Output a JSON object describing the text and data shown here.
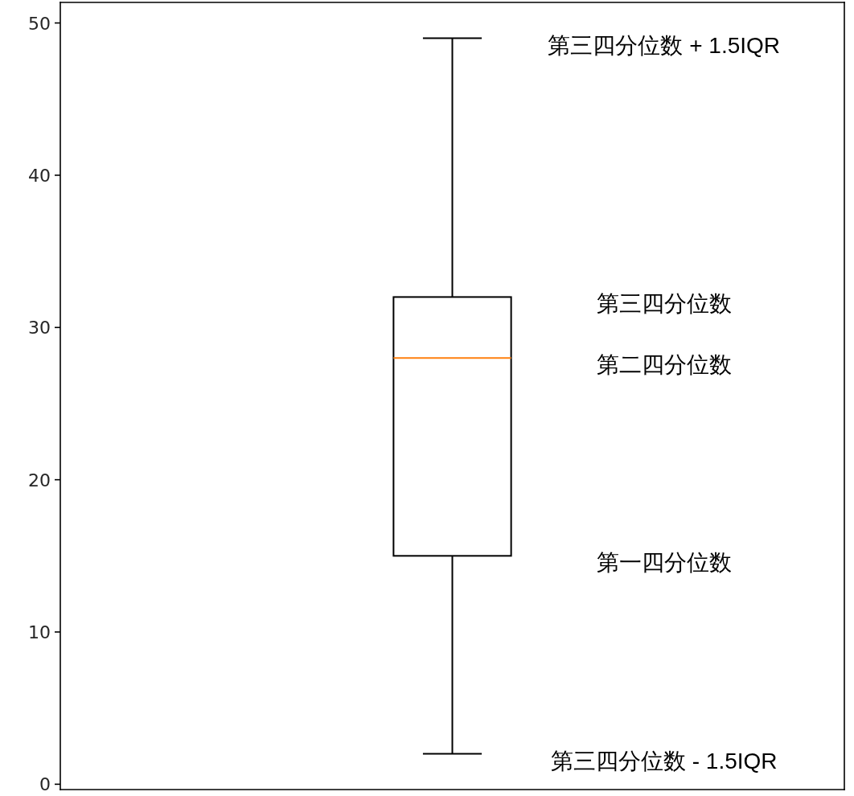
{
  "chart_data": {
    "type": "box",
    "categories": [
      null
    ],
    "boxes": [
      {
        "low": 2,
        "q1": 15,
        "median": 28,
        "q3": 32,
        "high": 49
      }
    ],
    "ylim": [
      -0.35,
      51.35
    ],
    "yticks": [
      0,
      10,
      20,
      30,
      40,
      50
    ],
    "tick_labels": "y",
    "annotations": [
      "第三四分位数 + 1.5IQR",
      "第三四分位数",
      "第二四分位数",
      "第一四分位数",
      "第三四分位数 - 1.5IQR"
    ]
  }
}
